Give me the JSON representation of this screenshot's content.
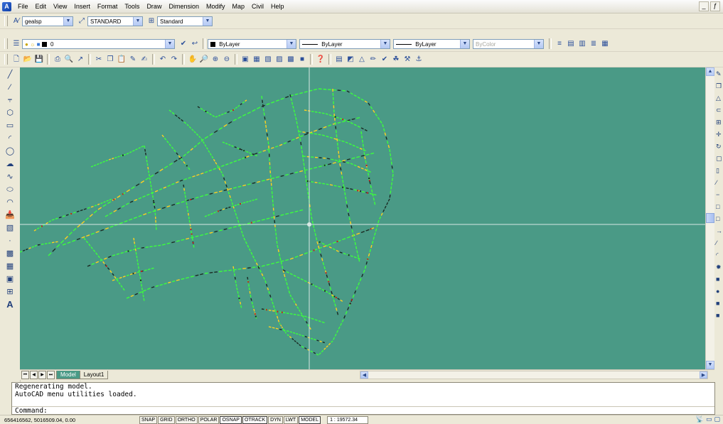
{
  "menu": {
    "items": [
      "File",
      "Edit",
      "View",
      "Insert",
      "Format",
      "Tools",
      "Draw",
      "Dimension",
      "Modify",
      "Map",
      "Civil",
      "Help"
    ],
    "window_controls": [
      "_",
      "ƒ"
    ]
  },
  "toolbar_styles": {
    "text_style": "gealsp",
    "dim_style": "STANDARD",
    "table_style": "Standard"
  },
  "toolbar_layers": {
    "layer": "0",
    "color": "ByLayer",
    "linetype": "ByLayer",
    "lineweight": "ByLayer",
    "plotstyle": "ByColor"
  },
  "tabs": {
    "model": "Model",
    "layout1": "Layout1"
  },
  "command": {
    "history": [
      "Regenerating model.",
      "AutoCAD menu utilities loaded."
    ],
    "prompt": "Command:"
  },
  "status": {
    "coords": "656416562, 5016509.04, 0.00",
    "toggles": [
      "SNAP",
      "GRID",
      "ORTHO",
      "POLAR",
      "OSNAP",
      "OTRACK",
      "DYN",
      "LWT",
      "MODEL"
    ],
    "scale": "1 : 19572.34"
  },
  "colors": {
    "canvas": "#4a9a86",
    "network_green": "#3cff3c",
    "network_yellow": "#ffd21e",
    "network_dark": "#1a2a22",
    "crosshair": "#d8e8e4"
  },
  "icons": {
    "left": [
      "line-icon",
      "construction-line-icon",
      "polyline-icon",
      "polygon-icon",
      "rectangle-icon",
      "arc-icon",
      "circle-icon",
      "revision-cloud-icon",
      "spline-icon",
      "ellipse-icon",
      "ellipse-arc-icon",
      "insert-block-icon",
      "make-block-icon",
      "point-icon",
      "hatch-icon",
      "gradient-icon",
      "region-icon",
      "table-icon",
      "multiline-text-icon"
    ]
  }
}
